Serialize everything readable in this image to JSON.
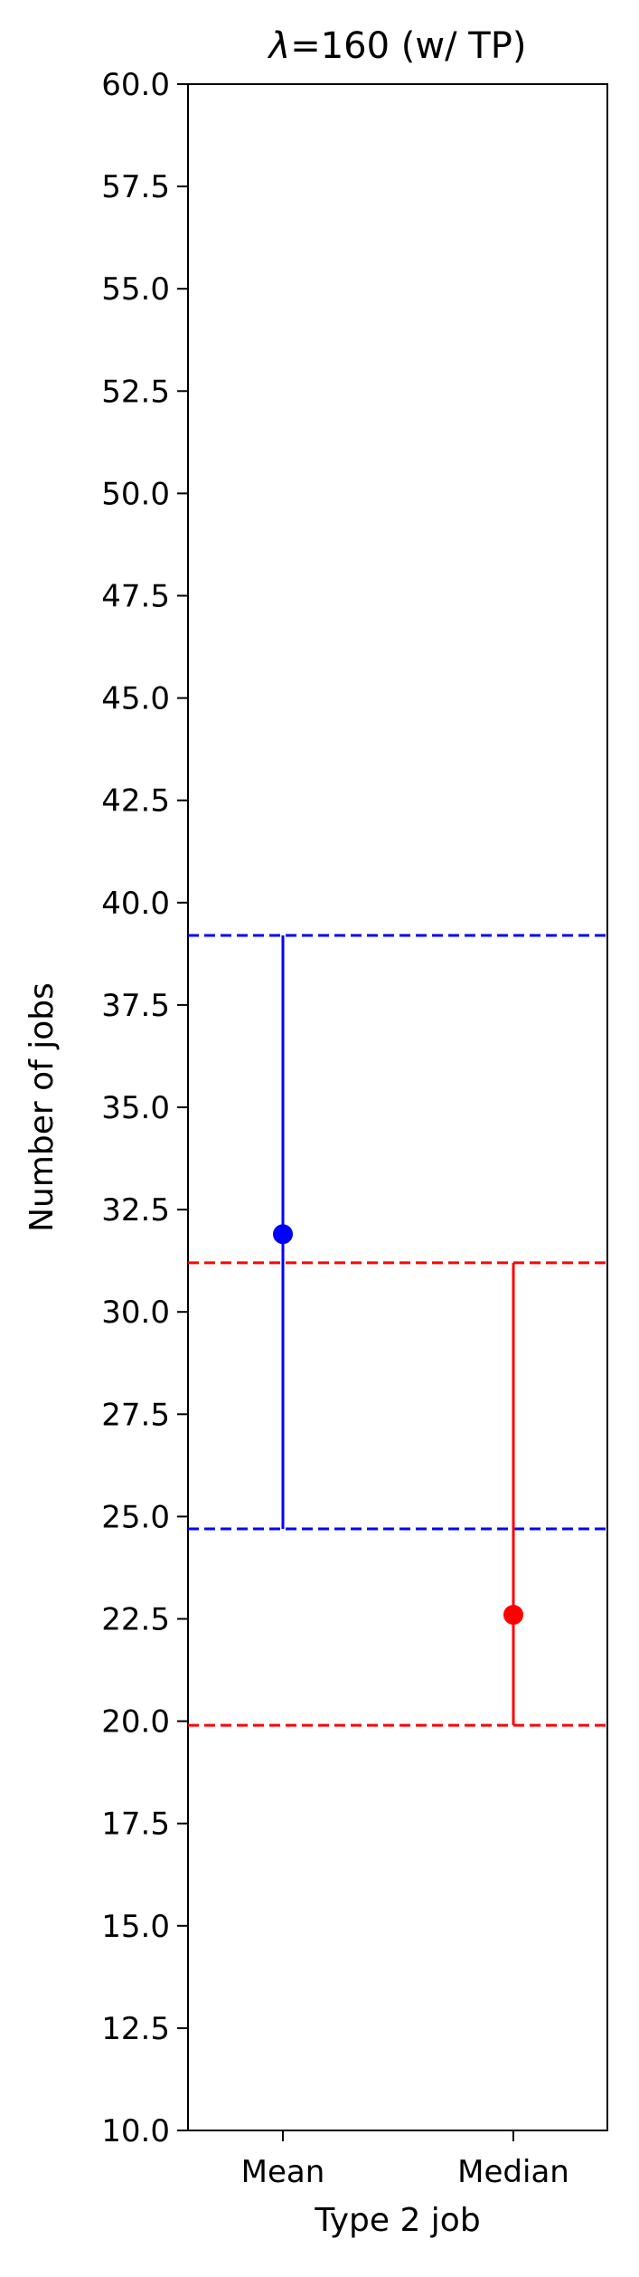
{
  "chart_data": {
    "type": "scatter",
    "title": "λ=160 (w/ TP)",
    "title_symbol": "λ",
    "title_rest": "=160 (w/ TP)",
    "xlabel": "Type 2 job",
    "ylabel": "Number of jobs",
    "categories": [
      "Mean",
      "Median"
    ],
    "ylim": [
      10.0,
      60.0
    ],
    "yticks": [
      "10.0",
      "12.5",
      "15.0",
      "17.5",
      "20.0",
      "22.5",
      "25.0",
      "27.5",
      "30.0",
      "32.5",
      "35.0",
      "37.5",
      "40.0",
      "42.5",
      "45.0",
      "47.5",
      "50.0",
      "52.5",
      "55.0",
      "57.5",
      "60.0"
    ],
    "grid": false,
    "legend": "none",
    "series": [
      {
        "category": "Mean",
        "value": 31.9,
        "lower": 24.7,
        "upper": 39.2,
        "color": "#0000ff"
      },
      {
        "category": "Median",
        "value": 22.6,
        "lower": 19.9,
        "upper": 31.2,
        "color": "#ff0000"
      }
    ]
  }
}
